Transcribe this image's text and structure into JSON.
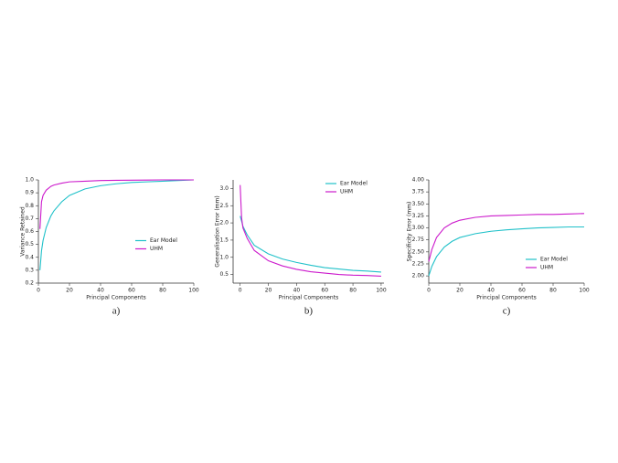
{
  "chart_data": [
    {
      "type": "line",
      "caption": "a)",
      "xlabel": "Principal Components",
      "ylabel": "Variance Retained",
      "x": [
        1,
        2,
        3,
        5,
        8,
        10,
        15,
        20,
        30,
        40,
        50,
        60,
        70,
        80,
        90,
        100
      ],
      "series": [
        {
          "name": "Ear Model",
          "color": "#20c1c9",
          "values": [
            0.3,
            0.45,
            0.53,
            0.63,
            0.72,
            0.76,
            0.83,
            0.88,
            0.93,
            0.955,
            0.97,
            0.98,
            0.985,
            0.99,
            0.995,
            1.0
          ]
        },
        {
          "name": "UHM",
          "color": "#cc1acc",
          "values": [
            0.62,
            0.83,
            0.88,
            0.92,
            0.95,
            0.96,
            0.975,
            0.985,
            0.99,
            0.995,
            0.997,
            0.998,
            0.999,
            1.0,
            1.0,
            1.0
          ]
        }
      ],
      "xlim": [
        0,
        100
      ],
      "xticks": [
        0,
        20,
        40,
        60,
        80,
        100
      ],
      "ylim": [
        0.2,
        1.0
      ],
      "yticks": [
        0.2,
        0.3,
        0.4,
        0.5,
        0.6,
        0.7,
        0.8,
        0.9,
        {
          "value": 1,
          "label": "1.0"
        }
      ],
      "legend": "center right"
    },
    {
      "type": "line",
      "caption": "b)",
      "xlabel": "Principal Components",
      "ylabel": "Generalisation Error (mm)",
      "x": [
        0,
        1,
        2,
        5,
        10,
        20,
        30,
        40,
        50,
        60,
        70,
        80,
        90,
        100
      ],
      "series": [
        {
          "name": "Ear Model",
          "color": "#20c1c9",
          "values": [
            2.2,
            2.05,
            1.9,
            1.65,
            1.35,
            1.1,
            0.95,
            0.85,
            0.77,
            0.7,
            0.66,
            0.62,
            0.6,
            0.57
          ]
        },
        {
          "name": "UHM",
          "color": "#cc1acc",
          "values": [
            3.1,
            2.15,
            1.85,
            1.55,
            1.2,
            0.9,
            0.75,
            0.65,
            0.58,
            0.54,
            0.5,
            0.48,
            0.47,
            0.45
          ]
        }
      ],
      "xlim": [
        -5,
        102
      ],
      "xticks": [
        0,
        20,
        40,
        60,
        80,
        100
      ],
      "ylim": [
        0.25,
        3.25
      ],
      "yticks": [
        0.5,
        {
          "value": 1,
          "label": "1.0"
        },
        1.5,
        {
          "value": 2,
          "label": "2.0"
        },
        2.5,
        {
          "value": 3,
          "label": "3.0"
        }
      ],
      "legend": "upper right"
    },
    {
      "type": "line",
      "caption": "c)",
      "xlabel": "Principal Components",
      "ylabel": "Specificity Error (mm)",
      "x": [
        0,
        2,
        5,
        10,
        15,
        20,
        30,
        40,
        50,
        60,
        70,
        80,
        90,
        100
      ],
      "series": [
        {
          "name": "Ear Model",
          "color": "#20c1c9",
          "values": [
            2.0,
            2.2,
            2.4,
            2.6,
            2.72,
            2.8,
            2.88,
            2.93,
            2.96,
            2.98,
            3.0,
            3.01,
            3.02,
            3.02
          ]
        },
        {
          "name": "UHM",
          "color": "#cc1acc",
          "values": [
            2.3,
            2.55,
            2.8,
            3.0,
            3.1,
            3.16,
            3.22,
            3.25,
            3.26,
            3.27,
            3.28,
            3.28,
            3.29,
            3.3
          ]
        }
      ],
      "xlim": [
        0,
        100
      ],
      "xticks": [
        0,
        20,
        40,
        60,
        80,
        100
      ],
      "ylim": [
        1.85,
        4.0
      ],
      "yticks": [
        {
          "value": 2,
          "label": "2.00"
        },
        2.25,
        {
          "value": 2.5,
          "label": "2.50"
        },
        2.75,
        {
          "value": 3,
          "label": "3.00"
        },
        3.25,
        {
          "value": 3.5,
          "label": "3.50"
        },
        3.75,
        {
          "value": 4,
          "label": "4.00"
        }
      ],
      "legend": "lower right"
    }
  ]
}
